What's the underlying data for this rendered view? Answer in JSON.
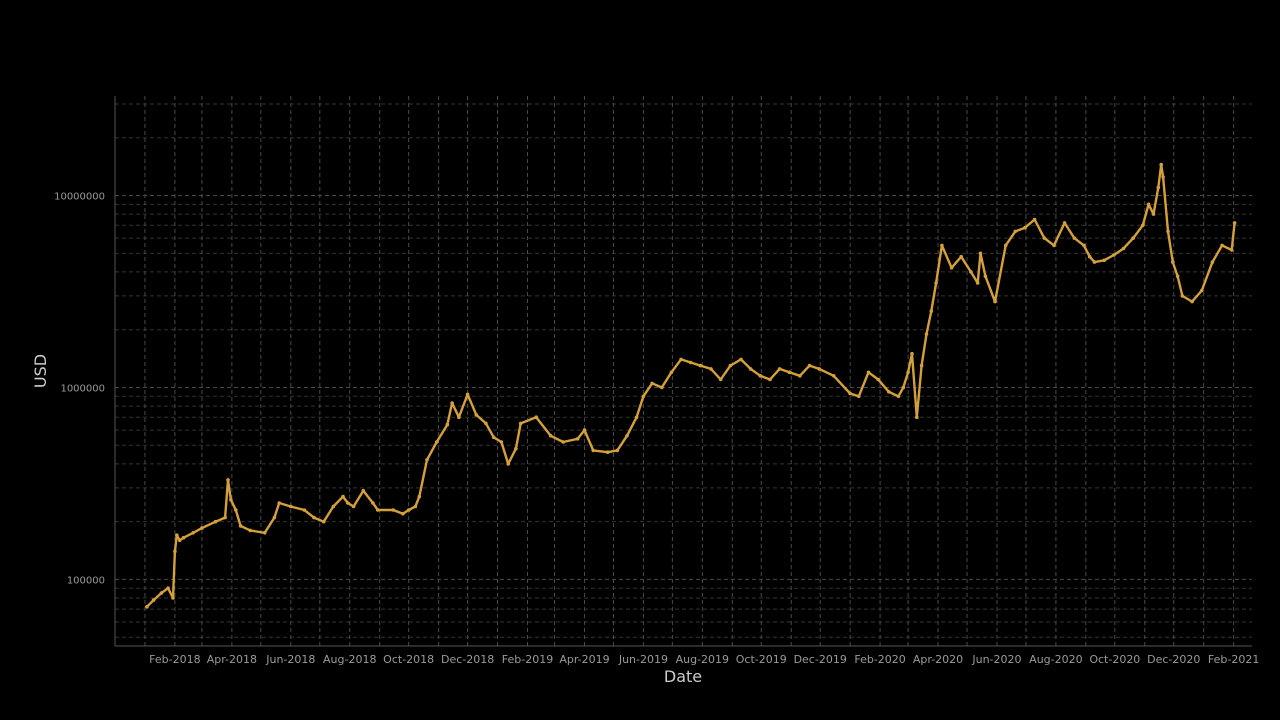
{
  "chart_data": {
    "type": "line",
    "xlabel": "Date",
    "ylabel": "USD",
    "yscale": "log",
    "ylim": [
      45000,
      33000000
    ],
    "xlim": [
      "2017-12-01",
      "2021-02-20"
    ],
    "grid": true,
    "line_color": "#d4a03a",
    "background_color": "#000000",
    "x_tick_labels": [
      {
        "date": "2018-02-01",
        "label": "Feb-2018"
      },
      {
        "date": "2018-04-01",
        "label": "Apr-2018"
      },
      {
        "date": "2018-06-01",
        "label": "Jun-2018"
      },
      {
        "date": "2018-08-01",
        "label": "Aug-2018"
      },
      {
        "date": "2018-10-01",
        "label": "Oct-2018"
      },
      {
        "date": "2018-12-01",
        "label": "Dec-2018"
      },
      {
        "date": "2019-02-01",
        "label": "Feb-2019"
      },
      {
        "date": "2019-04-01",
        "label": "Apr-2019"
      },
      {
        "date": "2019-06-01",
        "label": "Jun-2019"
      },
      {
        "date": "2019-08-01",
        "label": "Aug-2019"
      },
      {
        "date": "2019-10-01",
        "label": "Oct-2019"
      },
      {
        "date": "2019-12-01",
        "label": "Dec-2019"
      },
      {
        "date": "2020-02-01",
        "label": "Feb-2020"
      },
      {
        "date": "2020-04-01",
        "label": "Apr-2020"
      },
      {
        "date": "2020-06-01",
        "label": "Jun-2020"
      },
      {
        "date": "2020-08-01",
        "label": "Aug-2020"
      },
      {
        "date": "2020-10-01",
        "label": "Oct-2020"
      },
      {
        "date": "2020-12-01",
        "label": "Dec-2020"
      },
      {
        "date": "2021-02-01",
        "label": "Feb-2021"
      }
    ],
    "y_tick_labels": [
      {
        "value": 100000,
        "label": "100000"
      },
      {
        "value": 1000000,
        "label": "1000000"
      },
      {
        "value": 10000000,
        "label": "10000000"
      }
    ],
    "series": [
      {
        "x": [
          "2018-01-03",
          "2018-01-10",
          "2018-01-18",
          "2018-01-25",
          "2018-01-30",
          "2018-02-01",
          "2018-02-03",
          "2018-02-06",
          "2018-02-10",
          "2018-02-20",
          "2018-03-01",
          "2018-03-15",
          "2018-03-25",
          "2018-03-28",
          "2018-03-31",
          "2018-04-05",
          "2018-04-10",
          "2018-04-20",
          "2018-05-05",
          "2018-05-15",
          "2018-05-20",
          "2018-06-01",
          "2018-06-15",
          "2018-06-25",
          "2018-07-05",
          "2018-07-15",
          "2018-07-25",
          "2018-07-30",
          "2018-08-05",
          "2018-08-15",
          "2018-08-25",
          "2018-08-30",
          "2018-09-15",
          "2018-09-25",
          "2018-10-01",
          "2018-10-08",
          "2018-10-12",
          "2018-10-20",
          "2018-10-30",
          "2018-11-10",
          "2018-11-15",
          "2018-11-22",
          "2018-12-01",
          "2018-12-10",
          "2018-12-20",
          "2018-12-28",
          "2019-01-05",
          "2019-01-12",
          "2019-01-20",
          "2019-01-25",
          "2019-02-10",
          "2019-02-25",
          "2019-03-10",
          "2019-03-25",
          "2019-04-01",
          "2019-04-10",
          "2019-04-25",
          "2019-05-05",
          "2019-05-15",
          "2019-05-25",
          "2019-06-01",
          "2019-06-10",
          "2019-06-20",
          "2019-06-30",
          "2019-07-10",
          "2019-07-20",
          "2019-07-30",
          "2019-08-10",
          "2019-08-20",
          "2019-08-30",
          "2019-09-10",
          "2019-09-20",
          "2019-09-30",
          "2019-10-10",
          "2019-10-20",
          "2019-10-30",
          "2019-11-10",
          "2019-11-20",
          "2019-11-30",
          "2019-12-15",
          "2020-01-01",
          "2020-01-10",
          "2020-01-20",
          "2020-01-30",
          "2020-02-10",
          "2020-02-20",
          "2020-02-25",
          "2020-03-01",
          "2020-03-05",
          "2020-03-10",
          "2020-03-15",
          "2020-03-20",
          "2020-03-25",
          "2020-03-30",
          "2020-04-05",
          "2020-04-15",
          "2020-04-25",
          "2020-05-05",
          "2020-05-12",
          "2020-05-15",
          "2020-05-20",
          "2020-05-30",
          "2020-06-10",
          "2020-06-20",
          "2020-06-30",
          "2020-07-10",
          "2020-07-20",
          "2020-07-30",
          "2020-08-10",
          "2020-08-20",
          "2020-08-30",
          "2020-09-05",
          "2020-09-10",
          "2020-09-20",
          "2020-09-30",
          "2020-10-10",
          "2020-10-20",
          "2020-10-30",
          "2020-11-05",
          "2020-11-10",
          "2020-11-15",
          "2020-11-18",
          "2020-11-20",
          "2020-11-25",
          "2020-11-30",
          "2020-12-05",
          "2020-12-10",
          "2020-12-20",
          "2020-12-30",
          "2021-01-10",
          "2021-01-20",
          "2021-01-30",
          "2021-02-02"
        ],
        "y": [
          72000,
          78000,
          85000,
          90000,
          80000,
          140000,
          170000,
          160000,
          165000,
          175000,
          185000,
          200000,
          210000,
          330000,
          260000,
          230000,
          190000,
          180000,
          175000,
          210000,
          250000,
          240000,
          230000,
          210000,
          200000,
          240000,
          270000,
          250000,
          240000,
          290000,
          250000,
          230000,
          230000,
          220000,
          230000,
          240000,
          270000,
          420000,
          520000,
          640000,
          830000,
          700000,
          920000,
          720000,
          650000,
          550000,
          520000,
          400000,
          480000,
          650000,
          700000,
          560000,
          520000,
          540000,
          600000,
          470000,
          460000,
          470000,
          560000,
          700000,
          900000,
          1050000,
          1000000,
          1200000,
          1400000,
          1350000,
          1300000,
          1250000,
          1100000,
          1300000,
          1400000,
          1250000,
          1150000,
          1100000,
          1250000,
          1200000,
          1150000,
          1300000,
          1250000,
          1150000,
          930000,
          900000,
          1200000,
          1100000,
          950000,
          900000,
          1000000,
          1200000,
          1500000,
          700000,
          1300000,
          1900000,
          2500000,
          3500000,
          5500000,
          4200000,
          4800000,
          4000000,
          3500000,
          5000000,
          3800000,
          2800000,
          5500000,
          6500000,
          6800000,
          7500000,
          6000000,
          5500000,
          7200000,
          6000000,
          5500000,
          4800000,
          4500000,
          4600000,
          4900000,
          5300000,
          6000000,
          7000000,
          9000000,
          8000000,
          11000000,
          14500000,
          12500000,
          6500000,
          4500000,
          3800000,
          3000000,
          2800000,
          3200000,
          4500000,
          5500000,
          5200000,
          7200000
        ]
      }
    ]
  }
}
